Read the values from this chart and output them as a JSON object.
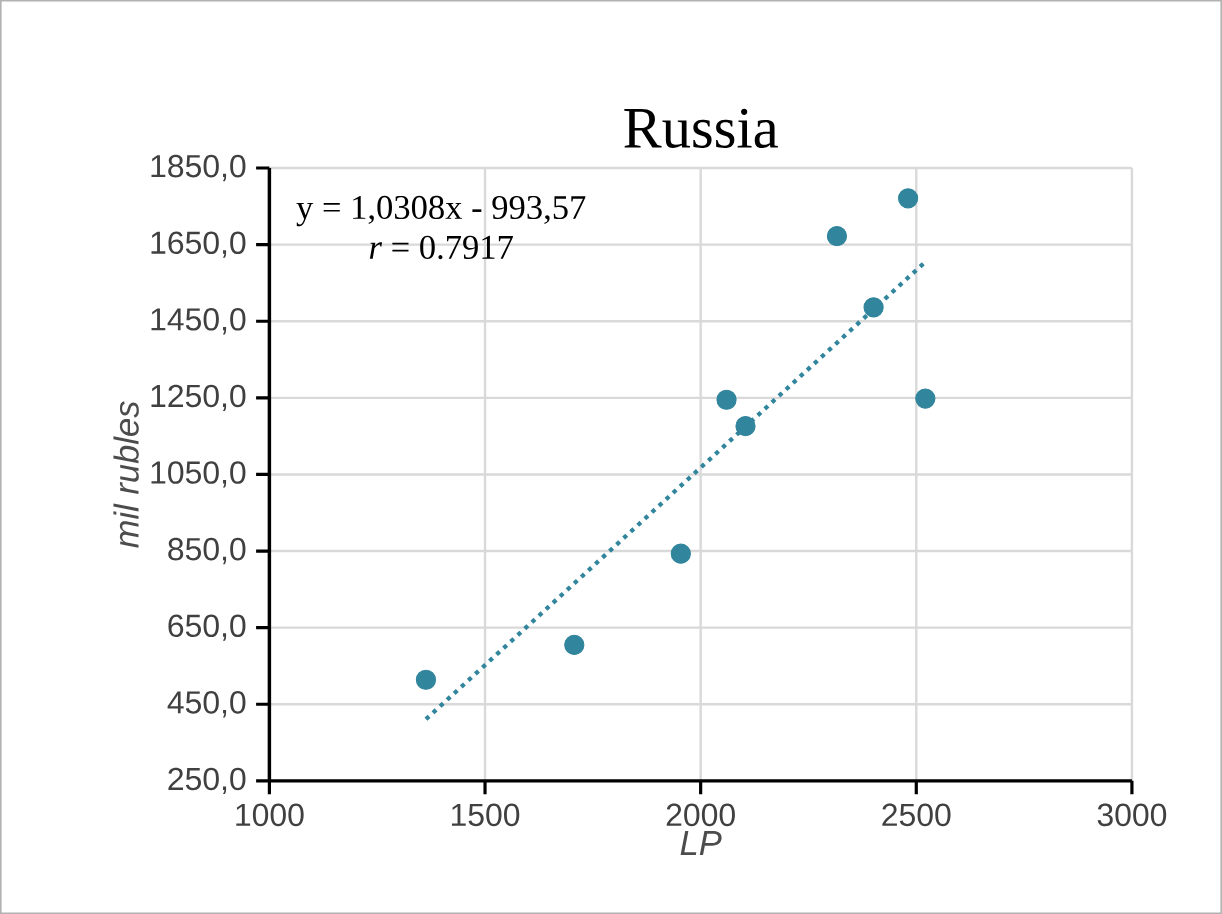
{
  "chart_data": {
    "type": "scatter",
    "title": "Russia",
    "xlabel": "LP",
    "ylabel": "mil rubles",
    "annotations": [
      "y = 1,0308x - 993,57",
      "*r* = 0.7917"
    ],
    "xlim": [
      1000,
      3000
    ],
    "xticks": [
      1000,
      1500,
      2000,
      2500,
      3000
    ],
    "ylim": [
      250,
      1850
    ],
    "yticks": [
      {
        "value": 250,
        "label": "250,0"
      },
      {
        "value": 450,
        "label": "450,0"
      },
      {
        "value": 650,
        "label": "650,0"
      },
      {
        "value": 850,
        "label": "850,0"
      },
      {
        "value": 1050,
        "label": "1050,0"
      },
      {
        "value": 1250,
        "label": "1250,0"
      },
      {
        "value": 1450,
        "label": "1450,0"
      },
      {
        "value": 1650,
        "label": "1650,0"
      },
      {
        "value": 1850,
        "label": "1850,0"
      }
    ],
    "grid": true,
    "series": [
      {
        "color": "#31859c",
        "marker": "circle",
        "x": [
          1363,
          1707,
          1954,
          2060,
          2104,
          2316,
          2401,
          2481,
          2521
        ],
        "values": [
          514,
          605,
          843,
          1245,
          1176,
          1672,
          1486,
          1771,
          1248
        ]
      },
      {
        "type": "line",
        "color": "#31859c",
        "line_style": "dotted",
        "marker": "none",
        "x": [
          1363,
          2521
        ],
        "values": [
          411,
          1605
        ]
      }
    ]
  }
}
